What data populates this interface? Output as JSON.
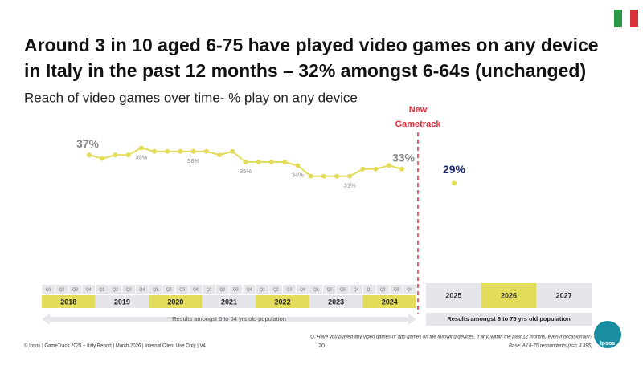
{
  "chart_data": {
    "type": "line",
    "title_lines": [
      "Around 3 in 10 aged 6-75 have played video games on any device",
      "in Italy in the past 12 months – 32% amongst 6-64s (unchanged)"
    ],
    "subtitle": "Reach of video games over time- % play on any device",
    "divider_label": [
      "New",
      "Gametrack"
    ],
    "color": "#e2dc5a",
    "values": [
      37,
      36,
      37,
      37,
      39,
      38,
      38,
      38,
      38,
      38,
      37,
      38,
      35,
      35,
      35,
      35,
      34,
      31,
      31,
      31,
      31,
      33,
      33,
      34,
      33
    ],
    "value_labels": [
      "37%",
      null,
      null,
      null,
      "39%",
      null,
      null,
      null,
      "38%",
      null,
      null,
      null,
      "35%",
      null,
      null,
      null,
      "34%",
      null,
      null,
      null,
      "31%",
      null,
      null,
      null,
      "33%"
    ],
    "new_values": [
      29
    ],
    "new_value_labels": [
      "29%"
    ],
    "quarters": [
      "Q1",
      "Q2",
      "Q3",
      "Q4"
    ],
    "years_old": [
      "2018",
      "2019",
      "2020",
      "2021",
      "2022",
      "2023",
      "2024"
    ],
    "years_new": [
      "2025",
      "2026",
      "2027"
    ],
    "old_population": "Results amongst 6 to 64 yrs old population",
    "new_population": "Results amongst 6 to 75 yrs old population"
  },
  "footer": {
    "left": "© Ipsos | GameTrack 2025 – Italy Report | March 2026 | Internal Client Use Only | V4",
    "page": "20",
    "question": "Q. Have you played any video games or app games on the following devices, if any, within the past 12 months, even if occasionally?",
    "base": "Base: All 6-75 respondents (n=c.3,395)",
    "logo": "Ipsos"
  }
}
